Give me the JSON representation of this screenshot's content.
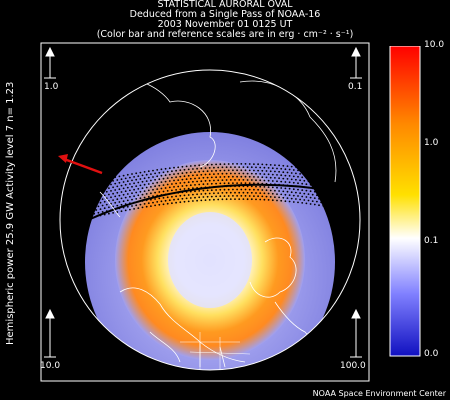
{
  "header": {
    "line1": "STATISTICAL AURORAL OVAL",
    "line2": "Deduced from a Single Pass of NOAA-16",
    "line3": "2003 November 01 0125 UT",
    "line4": "(Color bar and reference scales are in erg · cm⁻² · s⁻¹)"
  },
  "side_label": "Hemispheric power 25.9 GW   Activity level  7   n=  1.23",
  "reference_scales": {
    "top_left": "1.0",
    "top_right": "0.1",
    "bottom_left": "10.0",
    "bottom_right": "100.0"
  },
  "colorbar": {
    "ticks": [
      "10.0",
      "1.0",
      "0.1",
      "0.0"
    ],
    "colors": [
      "#ff0000",
      "#ff8800",
      "#ffe000",
      "#ffffff",
      "#8080ff",
      "#2020d0"
    ]
  },
  "credit": "NOAA Space Environment Center",
  "colors": {
    "arrow": "#e01010",
    "map_lines": "#ffffff",
    "frame": "#ffffff"
  }
}
